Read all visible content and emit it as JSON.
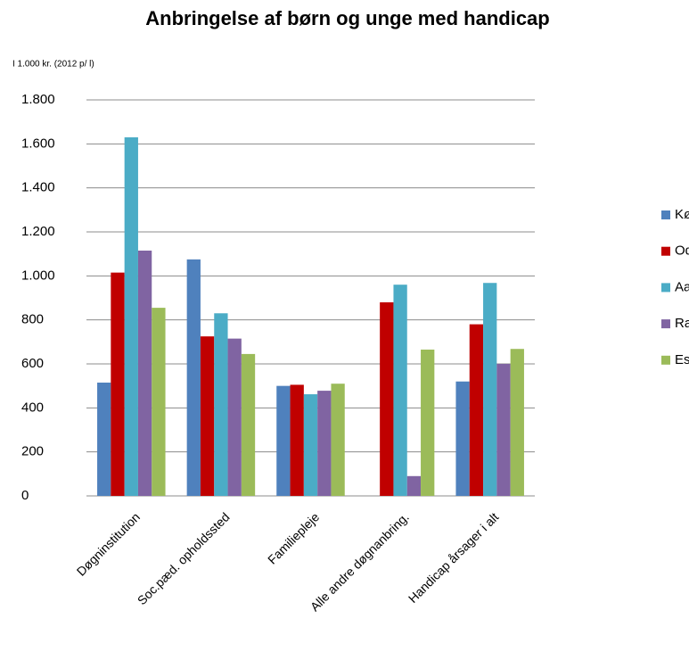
{
  "chart_data": {
    "type": "bar",
    "title": "Anbringelse af børn og unge med handicap",
    "y_axis_label": "I 1.000 kr. (2012 p/ l)",
    "categories": [
      "Døgninstitution",
      "Soc.pæd. opholdssted",
      "Familiepleje",
      "Alle andre døgnanbring.",
      "Handicap årsager i alt"
    ],
    "series": [
      {
        "name": "København",
        "color": "#4f81bd",
        "values": [
          515,
          1075,
          500,
          null,
          520
        ]
      },
      {
        "name": "Odense",
        "color": "#c00000",
        "values": [
          1015,
          725,
          505,
          880,
          780
        ]
      },
      {
        "name": "Aalborg",
        "color": "#4bacc6",
        "values": [
          1630,
          830,
          462,
          960,
          968
        ]
      },
      {
        "name": "Randers",
        "color": "#8064a2",
        "values": [
          1115,
          715,
          478,
          90,
          600
        ]
      },
      {
        "name": "Esbjerg",
        "color": "#9bbb59",
        "values": [
          855,
          645,
          510,
          665,
          668
        ]
      }
    ],
    "ylim": [
      0,
      1800
    ],
    "yticks": [
      0,
      200,
      400,
      600,
      800,
      {
        "value": 1000,
        "label": "1.000"
      },
      {
        "value": 1200,
        "label": "1.200"
      },
      {
        "value": 1400,
        "label": "1.400"
      },
      {
        "value": 1600,
        "label": "1.600"
      },
      {
        "value": 1800,
        "label": "1.800"
      }
    ],
    "grid": true,
    "legend": "right"
  }
}
